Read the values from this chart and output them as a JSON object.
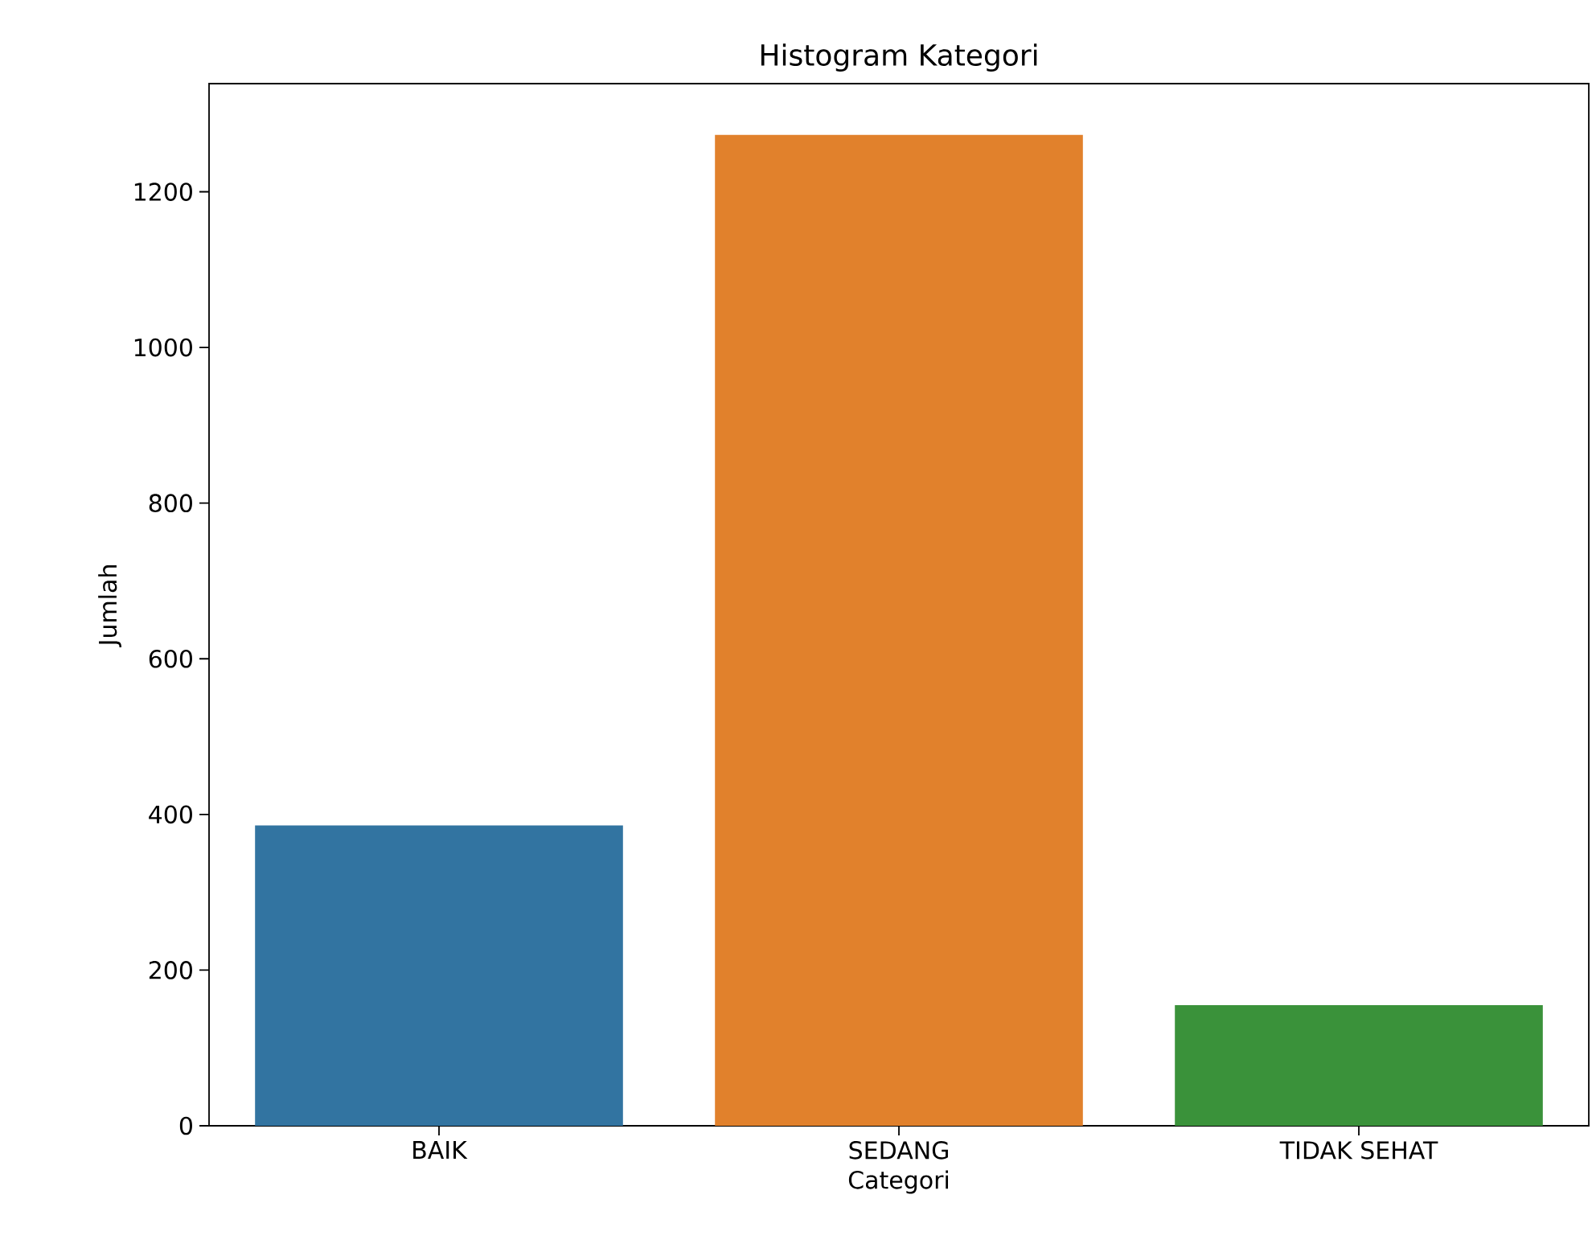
{
  "chart_data": {
    "type": "bar",
    "title": "Histogram Kategori",
    "xlabel": "Categori",
    "ylabel": "Jumlah",
    "categories": [
      "BAIK",
      "SEDANG",
      "TIDAK SEHAT"
    ],
    "values": [
      386,
      1273,
      155
    ],
    "colors": [
      "#3274a1",
      "#e1812c",
      "#3a923a"
    ],
    "ylim": [
      0,
      1339
    ],
    "yticks": [
      0,
      200,
      400,
      600,
      800,
      1000,
      1200
    ]
  }
}
